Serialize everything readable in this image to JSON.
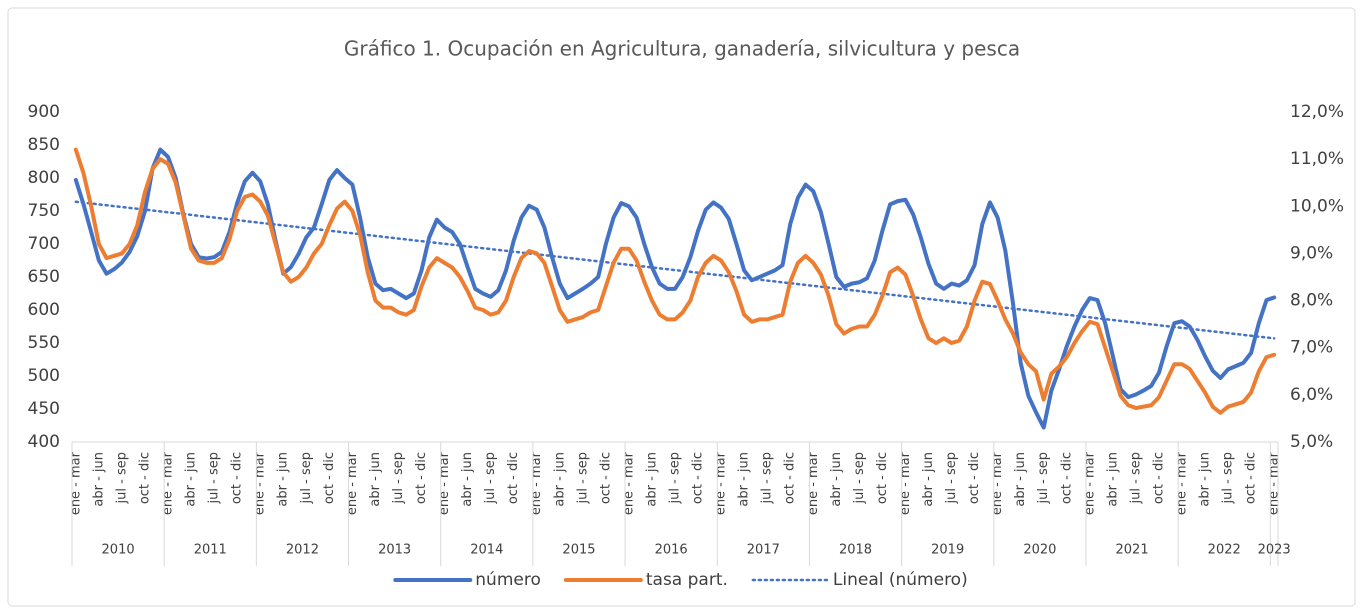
{
  "chart_data": {
    "type": "line",
    "title": "Gráfico 1. Ocupación en Agricultura, ganadería, silvicultura y pesca",
    "categories": [
      "ene - mar",
      null,
      null,
      "abr - jun",
      null,
      null,
      "jul - sep",
      null,
      null,
      "oct - dic",
      null,
      null,
      "ene - mar",
      null,
      null,
      "abr - jun",
      null,
      null,
      "jul - sep",
      null,
      null,
      "oct - dic",
      null,
      null,
      "ene - mar",
      null,
      null,
      "abr - jun",
      null,
      null,
      "jul - sep",
      null,
      null,
      "oct - dic",
      null,
      null,
      "ene - mar",
      null,
      null,
      "abr - jun",
      null,
      null,
      "jul - sep",
      null,
      null,
      "oct - dic",
      null,
      null,
      "ene - mar",
      null,
      null,
      "abr - jun",
      null,
      null,
      "jul - sep",
      null,
      null,
      "oct - dic",
      null,
      null,
      "ene - mar",
      null,
      null,
      "abr - jun",
      null,
      null,
      "jul - sep",
      null,
      null,
      "oct - dic",
      null,
      null,
      "ene - mar",
      null,
      null,
      "abr - jun",
      null,
      null,
      "jul - sep",
      null,
      null,
      "oct - dic",
      null,
      null,
      "ene - mar",
      null,
      null,
      "abr - jun",
      null,
      null,
      "jul - sep",
      null,
      null,
      "oct - dic",
      null,
      null,
      "ene - mar",
      null,
      null,
      "abr - jun",
      null,
      null,
      "jul - sep",
      null,
      null,
      "oct - dic",
      null,
      null,
      "ene - mar",
      null,
      null,
      "abr - jun",
      null,
      null,
      "jul - sep",
      null,
      null,
      "oct - dic",
      null,
      null,
      "ene - mar",
      null,
      null,
      "abr - jun",
      null,
      null,
      "jul - sep",
      null,
      null,
      "oct - dic",
      null,
      null,
      "ene - mar",
      null,
      null,
      "abr - jun",
      null,
      null,
      "jul - sep",
      null,
      null,
      "oct - dic",
      null,
      null,
      "ene - mar",
      null,
      null,
      "abr - jun",
      null,
      null,
      "jul - sep",
      null,
      null,
      "oct - dic",
      null,
      null,
      "ene - mar"
    ],
    "years": [
      "2010",
      "2011",
      "2012",
      "2013",
      "2014",
      "2015",
      "2016",
      "2017",
      "2018",
      "2019",
      "2020",
      "2021",
      "2022",
      "2023"
    ],
    "series": [
      {
        "name": "número",
        "color": "#4472c4",
        "values": [
          797,
          760,
          718,
          675,
          655,
          662,
          672,
          688,
          712,
          750,
          815,
          843,
          832,
          800,
          745,
          700,
          680,
          678,
          680,
          688,
          718,
          762,
          795,
          808,
          795,
          760,
          705,
          655,
          665,
          685,
          710,
          725,
          760,
          797,
          812,
          800,
          790,
          740,
          680,
          640,
          630,
          632,
          625,
          618,
          625,
          660,
          710,
          737,
          725,
          718,
          700,
          665,
          632,
          625,
          620,
          630,
          660,
          705,
          740,
          758,
          752,
          725,
          680,
          640,
          618,
          625,
          632,
          640,
          650,
          700,
          740,
          762,
          757,
          740,
          700,
          665,
          640,
          632,
          632,
          650,
          680,
          720,
          752,
          763,
          755,
          738,
          700,
          660,
          645,
          650,
          655,
          660,
          668,
          730,
          770,
          790,
          780,
          748,
          700,
          650,
          635,
          640,
          642,
          648,
          675,
          720,
          760,
          765,
          767,
          745,
          710,
          670,
          640,
          632,
          640,
          637,
          645,
          668,
          730,
          763,
          740,
          690,
          610,
          520,
          470,
          445,
          422,
          478,
          510,
          545,
          575,
          600,
          618,
          615,
          580,
          530,
          480,
          468,
          472,
          478,
          485,
          505,
          545,
          580,
          583,
          575,
          555,
          530,
          508,
          497,
          510,
          515,
          520,
          535,
          580,
          615,
          619
        ]
      },
      {
        "name": "tasa part.",
        "color": "#ed7d31",
        "axis": "y2",
        "values": [
          11.2,
          10.7,
          10.0,
          9.2,
          8.9,
          8.95,
          9.0,
          9.2,
          9.6,
          10.3,
          10.8,
          11.0,
          10.9,
          10.5,
          9.8,
          9.1,
          8.85,
          8.8,
          8.8,
          8.9,
          9.3,
          9.9,
          10.2,
          10.25,
          10.1,
          9.8,
          9.2,
          8.6,
          8.4,
          8.5,
          8.7,
          9.0,
          9.2,
          9.6,
          9.95,
          10.1,
          9.9,
          9.4,
          8.6,
          8.0,
          7.85,
          7.85,
          7.75,
          7.7,
          7.8,
          8.3,
          8.7,
          8.9,
          8.8,
          8.7,
          8.5,
          8.2,
          7.85,
          7.8,
          7.7,
          7.75,
          8.0,
          8.5,
          8.9,
          9.05,
          9.0,
          8.8,
          8.3,
          7.8,
          7.55,
          7.6,
          7.65,
          7.75,
          7.8,
          8.3,
          8.8,
          9.1,
          9.1,
          8.85,
          8.4,
          8.0,
          7.7,
          7.6,
          7.6,
          7.75,
          8.0,
          8.5,
          8.8,
          8.95,
          8.85,
          8.6,
          8.2,
          7.7,
          7.55,
          7.6,
          7.6,
          7.65,
          7.7,
          8.4,
          8.8,
          8.95,
          8.8,
          8.55,
          8.1,
          7.5,
          7.3,
          7.4,
          7.45,
          7.45,
          7.7,
          8.1,
          8.6,
          8.7,
          8.55,
          8.1,
          7.6,
          7.2,
          7.1,
          7.2,
          7.1,
          7.15,
          7.45,
          8.0,
          8.4,
          8.35,
          8.0,
          7.6,
          7.3,
          6.9,
          6.65,
          6.5,
          5.9,
          6.45,
          6.6,
          6.8,
          7.1,
          7.35,
          7.55,
          7.5,
          7.0,
          6.5,
          5.98,
          5.78,
          5.72,
          5.75,
          5.78,
          5.95,
          6.3,
          6.65,
          6.65,
          6.55,
          6.3,
          6.05,
          5.75,
          5.62,
          5.75,
          5.8,
          5.85,
          6.05,
          6.5,
          6.8,
          6.85
        ]
      }
    ],
    "trendline": {
      "name": "Lineal (número)",
      "color": "#4472c4",
      "start": 764,
      "end": 557
    },
    "ylim": [
      400,
      900
    ],
    "yticks": [
      400,
      450,
      500,
      550,
      600,
      650,
      700,
      750,
      800,
      850,
      900
    ],
    "y2lim": [
      5,
      12
    ],
    "y2ticks": [
      {
        "value": 5,
        "label": "5,0%"
      },
      {
        "value": 6,
        "label": "6,0%"
      },
      {
        "value": 7,
        "label": "7,0%"
      },
      {
        "value": 8,
        "label": "8,0%"
      },
      {
        "value": 9,
        "label": "9,0%"
      },
      {
        "value": 10,
        "label": "10,0%"
      },
      {
        "value": 11,
        "label": "11,0%"
      },
      {
        "value": 12,
        "label": "12,0%"
      }
    ],
    "grid": false,
    "legend": "bottom"
  }
}
